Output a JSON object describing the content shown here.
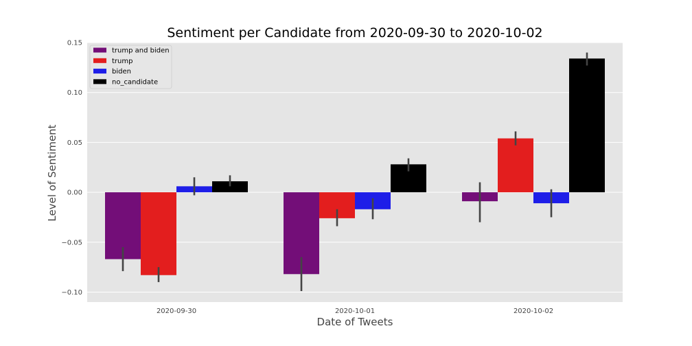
{
  "chart_data": {
    "type": "bar",
    "title": "Sentiment per Candidate from 2020-09-30 to 2020-10-02",
    "xlabel": "Date of Tweets",
    "ylabel": "Level of Sentiment",
    "categories": [
      "2020-09-30",
      "2020-10-01",
      "2020-10-02"
    ],
    "ylim": [
      -0.11,
      0.15
    ],
    "yticks": [
      -0.1,
      -0.05,
      0.0,
      0.05,
      0.1,
      0.15
    ],
    "ytick_labels": [
      "−0.10",
      "−0.05",
      "0.00",
      "0.05",
      "0.10",
      "0.15"
    ],
    "grid": true,
    "legend_position": "top-left",
    "series": [
      {
        "name": "trump and biden",
        "color": "#730e78",
        "values": [
          -0.067,
          -0.082,
          -0.009
        ],
        "err_low": [
          -0.079,
          -0.099,
          -0.03
        ],
        "err_high": [
          -0.055,
          -0.065,
          0.01
        ]
      },
      {
        "name": "trump",
        "color": "#e31e1e",
        "values": [
          -0.083,
          -0.026,
          0.054
        ],
        "err_low": [
          -0.09,
          -0.034,
          0.047
        ],
        "err_high": [
          -0.075,
          -0.017,
          0.061
        ]
      },
      {
        "name": "biden",
        "color": "#1e1ee8",
        "values": [
          0.006,
          -0.017,
          -0.011
        ],
        "err_low": [
          -0.003,
          -0.027,
          -0.025
        ],
        "err_high": [
          0.015,
          -0.006,
          0.003
        ]
      },
      {
        "name": "no_candidate",
        "color": "#000000",
        "values": [
          0.011,
          0.028,
          0.134
        ],
        "err_low": [
          0.006,
          0.021,
          0.127
        ],
        "err_high": [
          0.017,
          0.034,
          0.14
        ]
      }
    ]
  }
}
